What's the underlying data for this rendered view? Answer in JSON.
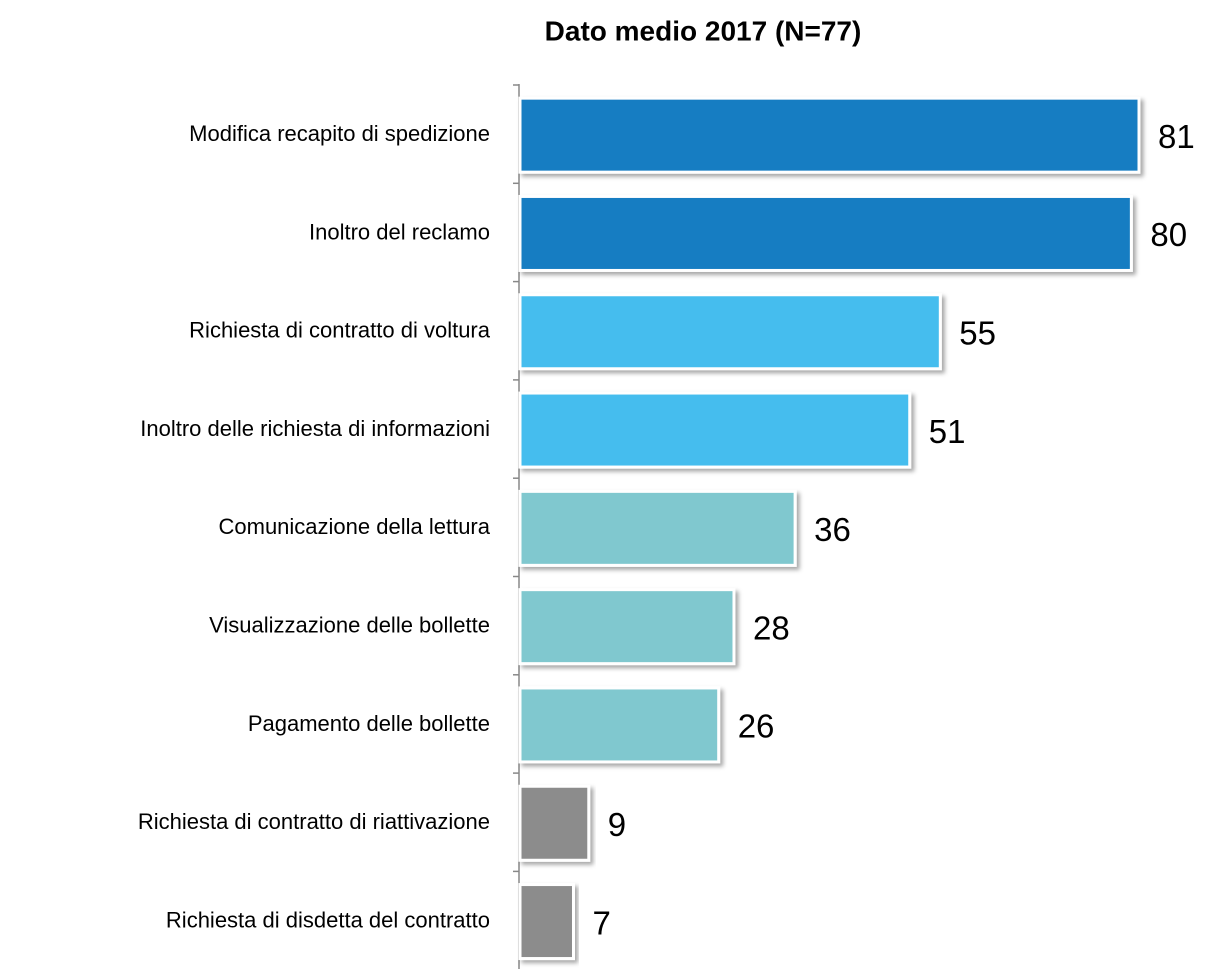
{
  "chart_data": {
    "type": "bar",
    "orientation": "horizontal",
    "title": "Dato medio 2017 (N=77)",
    "categories": [
      "Modifica recapito di spedizione",
      "Inoltro del reclamo",
      "Richiesta di contratto di voltura",
      "Inoltro delle richiesta di informazioni",
      "Comunicazione della lettura",
      "Visualizzazione delle bollette",
      "Pagamento delle bollette",
      "Richiesta di contratto di riattivazione",
      "Richiesta di disdetta del contratto"
    ],
    "values": [
      81,
      80,
      55,
      51,
      36,
      28,
      26,
      9,
      7
    ],
    "colors": [
      "#167dc2",
      "#167dc2",
      "#45bdee",
      "#45bdee",
      "#80c8cf",
      "#80c8cf",
      "#80c8cf",
      "#8c8c8c",
      "#8c8c8c"
    ]
  }
}
